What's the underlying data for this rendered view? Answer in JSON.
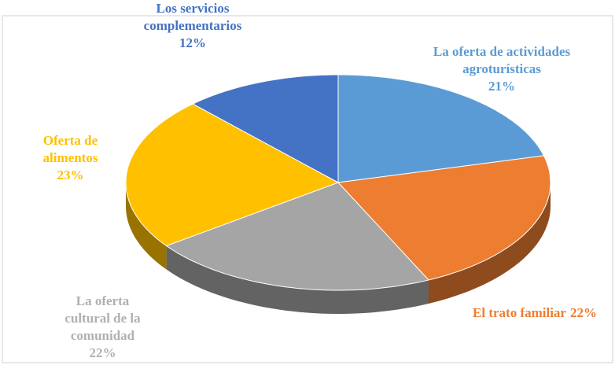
{
  "chart_data": {
    "type": "pie",
    "categories": [
      "La oferta de actividades agroturísticas",
      "El trato familiar",
      "La oferta cultural de la comunidad",
      "Oferta de alimentos",
      "Los servicios complementarios"
    ],
    "values": [
      21,
      22,
      22,
      23,
      12
    ],
    "value_labels": [
      "21%",
      "22%",
      "22%",
      "23%",
      "12%"
    ],
    "colors": [
      "#5b9bd5",
      "#ed7d31",
      "#a5a5a5",
      "#ffc000",
      "#4472c4"
    ]
  }
}
